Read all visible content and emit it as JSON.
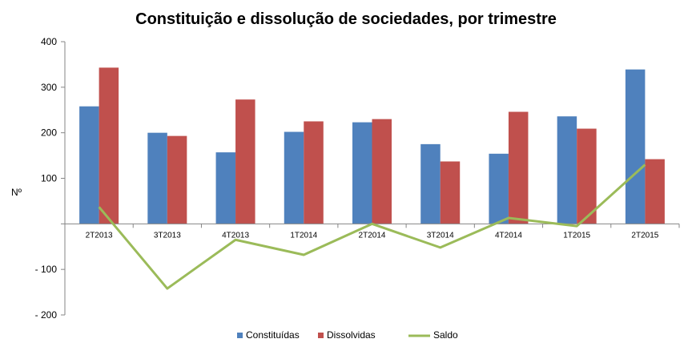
{
  "chart_data": {
    "type": "bar",
    "title": "Constituição e dissolução de sociedades, por trimestre",
    "ylabel": "Nº",
    "xlabel": "",
    "categories": [
      "2T2013",
      "3T2013",
      "4T2013",
      "1T2014",
      "2T2014",
      "3T2014",
      "4T2014",
      "1T2015",
      "2T2015"
    ],
    "y_ticks": [
      {
        "value": 400,
        "label": "400"
      },
      {
        "value": 300,
        "label": "300"
      },
      {
        "value": 200,
        "label": "200"
      },
      {
        "value": 100,
        "label": "100"
      },
      {
        "value": -100,
        "label": "- 100"
      },
      {
        "value": -200,
        "label": "- 200"
      }
    ],
    "ylim": [
      -200,
      400
    ],
    "grid": false,
    "legend_position": "bottom",
    "series": [
      {
        "name": "Constituídas",
        "type": "bar",
        "color": "#4f81bd",
        "values": [
          258,
          200,
          157,
          202,
          223,
          175,
          154,
          236,
          339
        ]
      },
      {
        "name": "Dissolvidas",
        "type": "bar",
        "color": "#c0504d",
        "values": [
          343,
          193,
          273,
          225,
          230,
          137,
          246,
          209,
          142
        ]
      },
      {
        "name": "Saldo",
        "type": "line",
        "color": "#9bbb59",
        "values": [
          37,
          -142,
          -35,
          -68,
          0,
          -52,
          13,
          -5,
          130
        ]
      }
    ]
  }
}
